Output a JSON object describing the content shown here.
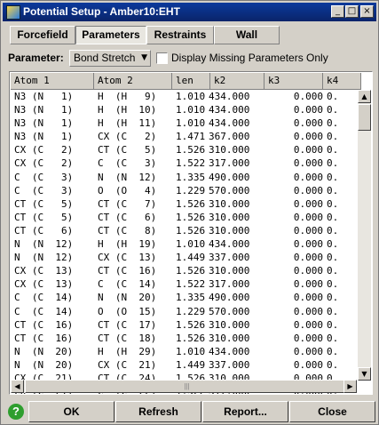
{
  "window": {
    "title": "Potential Setup - Amber10:EHT",
    "minimize": "_",
    "maximize": "□",
    "close": "×"
  },
  "tabs": [
    {
      "label": "Forcefield",
      "active": false
    },
    {
      "label": "Parameters",
      "active": true
    },
    {
      "label": "Restraints",
      "active": false
    },
    {
      "label": "Wall",
      "active": false
    }
  ],
  "parameter": {
    "label": "Parameter:",
    "selected": "Bond Stretch",
    "checkbox_label": "Display Missing Parameters Only",
    "checked": false
  },
  "table": {
    "columns": [
      "Atom 1",
      "Atom 2",
      "len",
      "k2",
      "k3",
      "k4"
    ],
    "rows": [
      [
        "N3 (N   1)",
        "H  (H   9)",
        "1.010",
        "434.000",
        "0.000",
        "0."
      ],
      [
        "N3 (N   1)",
        "H  (H  10)",
        "1.010",
        "434.000",
        "0.000",
        "0."
      ],
      [
        "N3 (N   1)",
        "H  (H  11)",
        "1.010",
        "434.000",
        "0.000",
        "0."
      ],
      [
        "N3 (N   1)",
        "CX (C   2)",
        "1.471",
        "367.000",
        "0.000",
        "0."
      ],
      [
        "CX (C   2)",
        "CT (C   5)",
        "1.526",
        "310.000",
        "0.000",
        "0."
      ],
      [
        "CX (C   2)",
        "C  (C   3)",
        "1.522",
        "317.000",
        "0.000",
        "0."
      ],
      [
        "C  (C   3)",
        "N  (N  12)",
        "1.335",
        "490.000",
        "0.000",
        "0."
      ],
      [
        "C  (C   3)",
        "O  (O   4)",
        "1.229",
        "570.000",
        "0.000",
        "0."
      ],
      [
        "CT (C   5)",
        "CT (C   7)",
        "1.526",
        "310.000",
        "0.000",
        "0."
      ],
      [
        "CT (C   5)",
        "CT (C   6)",
        "1.526",
        "310.000",
        "0.000",
        "0."
      ],
      [
        "CT (C   6)",
        "CT (C   8)",
        "1.526",
        "310.000",
        "0.000",
        "0."
      ],
      [
        "N  (N  12)",
        "H  (H  19)",
        "1.010",
        "434.000",
        "0.000",
        "0."
      ],
      [
        "N  (N  12)",
        "CX (C  13)",
        "1.449",
        "337.000",
        "0.000",
        "0."
      ],
      [
        "CX (C  13)",
        "CT (C  16)",
        "1.526",
        "310.000",
        "0.000",
        "0."
      ],
      [
        "CX (C  13)",
        "C  (C  14)",
        "1.522",
        "317.000",
        "0.000",
        "0."
      ],
      [
        "C  (C  14)",
        "N  (N  20)",
        "1.335",
        "490.000",
        "0.000",
        "0."
      ],
      [
        "C  (C  14)",
        "O  (O  15)",
        "1.229",
        "570.000",
        "0.000",
        "0."
      ],
      [
        "CT (C  16)",
        "CT (C  17)",
        "1.526",
        "310.000",
        "0.000",
        "0."
      ],
      [
        "CT (C  16)",
        "CT (C  18)",
        "1.526",
        "310.000",
        "0.000",
        "0."
      ],
      [
        "N  (N  20)",
        "H  (H  29)",
        "1.010",
        "434.000",
        "0.000",
        "0."
      ],
      [
        "N  (N  20)",
        "CX (C  21)",
        "1.449",
        "337.000",
        "0.000",
        "0."
      ],
      [
        "CX (C  21)",
        "CT (C  24)",
        "1.526",
        "310.000",
        "0.000",
        "0."
      ],
      [
        "CX (C  21)",
        "C  (C  22)",
        "1.522",
        "317.000",
        "0.000",
        "0."
      ]
    ]
  },
  "scrollbar": {
    "up": "▲",
    "down": "▼",
    "left": "◀",
    "right": "▶",
    "grip": "|||"
  },
  "buttons": {
    "help": "?",
    "ok": "OK",
    "refresh": "Refresh",
    "report": "Report...",
    "close": "Close"
  }
}
